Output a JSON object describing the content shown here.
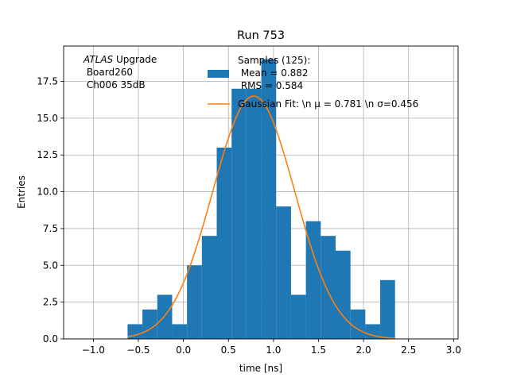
{
  "chart_data": {
    "type": "bar",
    "title": "Run 753",
    "xlabel": "time [ns]",
    "ylabel": "Entries",
    "xlim": [
      -1.33,
      3.05
    ],
    "ylim": [
      0,
      19.9
    ],
    "grid": true,
    "xticks": [
      -1.0,
      -0.5,
      0.0,
      0.5,
      1.0,
      1.5,
      2.0,
      2.5,
      3.0
    ],
    "xtick_labels": [
      "−1.0",
      "−0.5",
      "0.0",
      "0.5",
      "1.0",
      "1.5",
      "2.0",
      "2.5",
      "3.0"
    ],
    "yticks": [
      0.0,
      2.5,
      5.0,
      7.5,
      10.0,
      12.5,
      15.0,
      17.5
    ],
    "ytick_labels": [
      "0.0",
      "2.5",
      "5.0",
      "7.5",
      "10.0",
      "12.5",
      "15.0",
      "17.5"
    ],
    "histogram": {
      "name": "Samples (125):\n Mean = 0.882\n RMS = 0.584",
      "color": "#1f77b4",
      "bin_edges": [
        -0.62,
        -0.455,
        -0.29,
        -0.125,
        0.04,
        0.205,
        0.37,
        0.535,
        0.7,
        0.865,
        1.03,
        1.195,
        1.36,
        1.525,
        1.69,
        1.855,
        2.02,
        2.185,
        2.35
      ],
      "counts": [
        1,
        2,
        3,
        1,
        5,
        7,
        13,
        17,
        17,
        19,
        9,
        3,
        8,
        7,
        6,
        2,
        1,
        4
      ]
    },
    "fit": {
      "name": "Gaussian Fit: \\n $\\mu$ = 0.781 \\n $\\sigma$=0.456",
      "legend_text": "Gaussian Fit: \\n μ = 0.781 \\n σ=0.456",
      "color": "#ff7f0e",
      "type": "gaussian",
      "mu": 0.781,
      "sigma": 0.456,
      "amplitude": 16.5,
      "x_range": [
        -0.62,
        2.35
      ]
    },
    "legend": {
      "placement": "top-right",
      "histogram_lines": [
        "Samples (125):",
        " Mean = 0.882",
        " RMS = 0.584"
      ]
    },
    "annotation": {
      "lines": [
        {
          "italic": "ATLAS",
          "text": " Upgrade"
        },
        {
          "text": " Board260"
        },
        {
          "text": " Ch006 35dB"
        }
      ]
    }
  }
}
